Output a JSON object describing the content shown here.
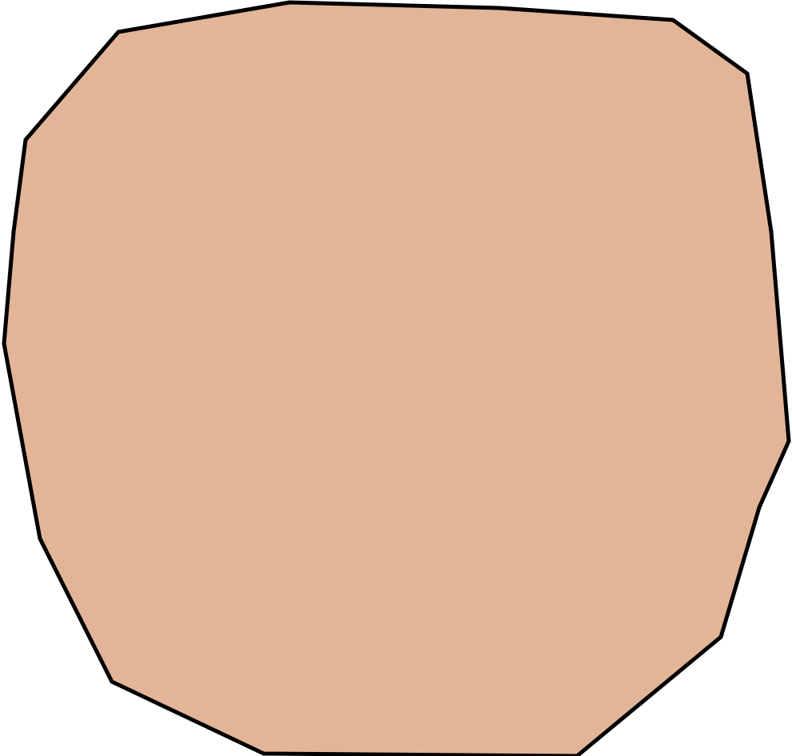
{
  "shape": {
    "label": "",
    "fill_color": "#e3b598",
    "stroke_color": "#000000"
  }
}
